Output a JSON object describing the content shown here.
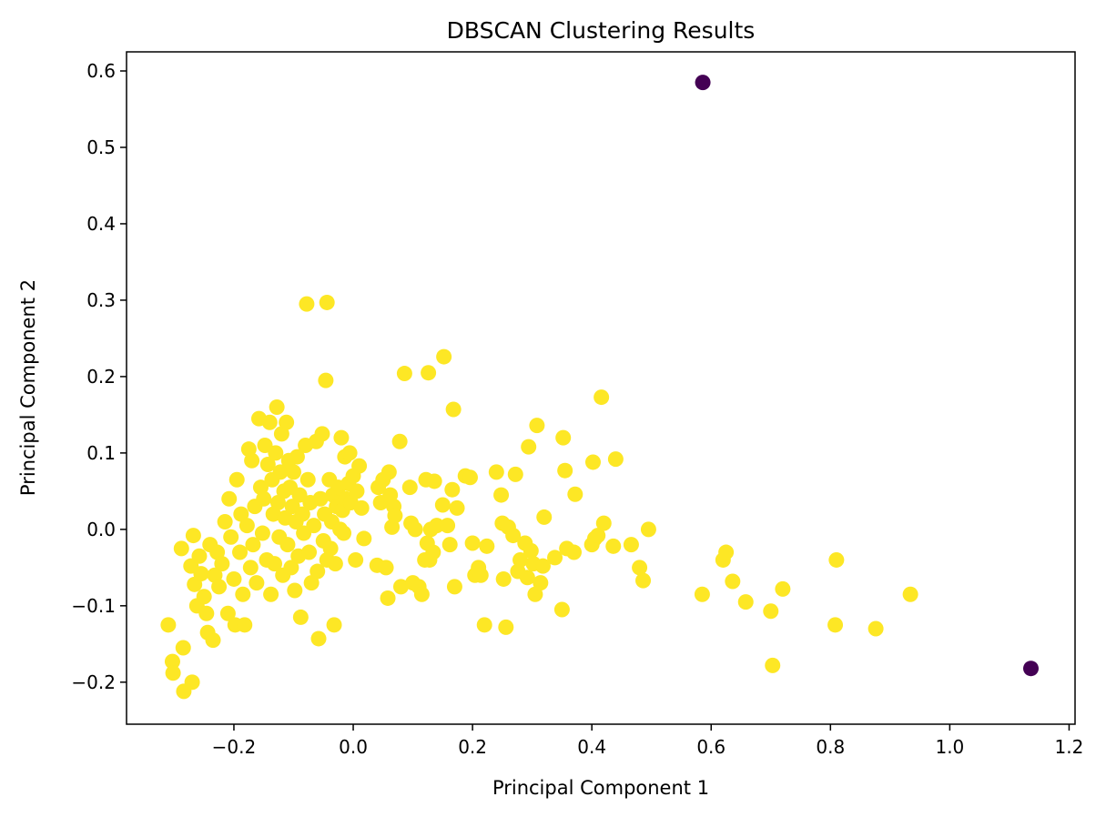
{
  "chart_data": {
    "type": "scatter",
    "title": "DBSCAN Clustering Results",
    "xlabel": "Principal Component 1",
    "ylabel": "Principal Component 2",
    "xlim": [
      -0.38,
      1.21
    ],
    "ylim": [
      -0.255,
      0.625
    ],
    "grid": false,
    "x_ticks": [
      -0.2,
      0.0,
      0.2,
      0.4,
      0.6,
      0.8,
      1.0,
      1.2
    ],
    "x_tick_labels": [
      "−0.2",
      "0.0",
      "0.2",
      "0.4",
      "0.6",
      "0.8",
      "1.0",
      "1.2"
    ],
    "y_ticks": [
      -0.2,
      -0.1,
      0.0,
      0.1,
      0.2,
      0.3,
      0.4,
      0.5,
      0.6
    ],
    "y_tick_labels": [
      "−0.2",
      "−0.1",
      "0.0",
      "0.1",
      "0.2",
      "0.3",
      "0.4",
      "0.5",
      "0.6"
    ],
    "colors": {
      "cluster": "#fde725",
      "noise": "#440154"
    },
    "series": [
      {
        "cluster": 0,
        "points": [
          [
            -0.31,
            -0.125
          ],
          [
            -0.303,
            -0.173
          ],
          [
            -0.302,
            -0.188
          ],
          [
            -0.285,
            -0.155
          ],
          [
            -0.284,
            -0.212
          ],
          [
            -0.288,
            -0.025
          ],
          [
            -0.27,
            -0.2
          ],
          [
            -0.268,
            -0.008
          ],
          [
            -0.272,
            -0.048
          ],
          [
            -0.266,
            -0.072
          ],
          [
            -0.262,
            -0.1
          ],
          [
            -0.258,
            -0.035
          ],
          [
            -0.255,
            -0.058
          ],
          [
            -0.25,
            -0.088
          ],
          [
            -0.246,
            -0.11
          ],
          [
            -0.244,
            -0.135
          ],
          [
            -0.24,
            -0.02
          ],
          [
            -0.235,
            -0.145
          ],
          [
            -0.232,
            -0.06
          ],
          [
            -0.228,
            -0.03
          ],
          [
            -0.225,
            -0.075
          ],
          [
            -0.22,
            -0.045
          ],
          [
            -0.215,
            0.01
          ],
          [
            -0.21,
            -0.11
          ],
          [
            -0.208,
            0.04
          ],
          [
            -0.205,
            -0.01
          ],
          [
            -0.2,
            -0.065
          ],
          [
            -0.198,
            -0.125
          ],
          [
            -0.195,
            0.065
          ],
          [
            -0.19,
            -0.03
          ],
          [
            -0.188,
            0.02
          ],
          [
            -0.185,
            -0.085
          ],
          [
            -0.182,
            -0.125
          ],
          [
            -0.178,
            0.005
          ],
          [
            -0.175,
            0.105
          ],
          [
            -0.172,
            -0.05
          ],
          [
            -0.17,
            0.09
          ],
          [
            -0.168,
            -0.02
          ],
          [
            -0.165,
            0.03
          ],
          [
            -0.162,
            -0.07
          ],
          [
            -0.158,
            0.145
          ],
          [
            -0.155,
            0.055
          ],
          [
            -0.152,
            -0.005
          ],
          [
            -0.15,
            0.04
          ],
          [
            -0.148,
            0.11
          ],
          [
            -0.145,
            -0.04
          ],
          [
            -0.143,
            0.085
          ],
          [
            -0.14,
            0.14
          ],
          [
            -0.138,
            -0.085
          ],
          [
            -0.136,
            0.065
          ],
          [
            -0.134,
            0.02
          ],
          [
            -0.132,
            -0.045
          ],
          [
            -0.13,
            0.1
          ],
          [
            -0.128,
            0.16
          ],
          [
            -0.126,
            0.035
          ],
          [
            -0.124,
            -0.01
          ],
          [
            -0.122,
            0.075
          ],
          [
            -0.12,
            0.125
          ],
          [
            -0.118,
            -0.06
          ],
          [
            -0.116,
            0.05
          ],
          [
            -0.114,
            0.015
          ],
          [
            -0.112,
            0.14
          ],
          [
            -0.11,
            -0.02
          ],
          [
            -0.108,
            0.09
          ],
          [
            -0.106,
            0.055
          ],
          [
            -0.104,
            -0.05
          ],
          [
            -0.102,
            0.03
          ],
          [
            -0.1,
            0.075
          ],
          [
            -0.098,
            -0.08
          ],
          [
            -0.096,
            0.01
          ],
          [
            -0.094,
            0.095
          ],
          [
            -0.092,
            -0.035
          ],
          [
            -0.09,
            0.045
          ],
          [
            -0.088,
            -0.115
          ],
          [
            -0.085,
            0.02
          ],
          [
            -0.083,
            -0.005
          ],
          [
            -0.08,
            0.11
          ],
          [
            -0.078,
            0.295
          ],
          [
            -0.076,
            0.065
          ],
          [
            -0.074,
            -0.03
          ],
          [
            -0.072,
            0.035
          ],
          [
            -0.07,
            -0.07
          ],
          [
            -0.066,
            0.005
          ],
          [
            -0.062,
            0.115
          ],
          [
            -0.06,
            -0.055
          ],
          [
            -0.058,
            -0.143
          ],
          [
            -0.055,
            0.04
          ],
          [
            -0.052,
            0.125
          ],
          [
            -0.05,
            -0.015
          ],
          [
            -0.048,
            0.02
          ],
          [
            -0.046,
            0.195
          ],
          [
            -0.044,
            -0.04
          ],
          [
            -0.044,
            0.297
          ],
          [
            -0.04,
            0.065
          ],
          [
            -0.038,
            -0.025
          ],
          [
            -0.036,
            0.01
          ],
          [
            -0.034,
            0.045
          ],
          [
            -0.032,
            -0.125
          ],
          [
            -0.03,
            -0.045
          ],
          [
            -0.028,
            0.03
          ],
          [
            -0.025,
            0.055
          ],
          [
            -0.022,
            0.0
          ],
          [
            -0.02,
            0.12
          ],
          [
            -0.018,
            0.025
          ],
          [
            -0.016,
            -0.005
          ],
          [
            -0.014,
            0.095
          ],
          [
            -0.012,
            0.04
          ],
          [
            -0.008,
            0.06
          ],
          [
            -0.006,
            0.1
          ],
          [
            -0.004,
            0.035
          ],
          [
            0.0,
            0.07
          ],
          [
            0.004,
            -0.04
          ],
          [
            0.006,
            0.05
          ],
          [
            0.01,
            0.083
          ],
          [
            0.014,
            0.028
          ],
          [
            0.018,
            -0.012
          ],
          [
            0.04,
            -0.047
          ],
          [
            0.042,
            0.055
          ],
          [
            0.046,
            0.035
          ],
          [
            0.05,
            0.065
          ],
          [
            0.055,
            -0.05
          ],
          [
            0.058,
            -0.09
          ],
          [
            0.06,
            0.075
          ],
          [
            0.062,
            0.045
          ],
          [
            0.065,
            0.003
          ],
          [
            0.068,
            0.03
          ],
          [
            0.07,
            0.018
          ],
          [
            0.078,
            0.115
          ],
          [
            0.08,
            -0.075
          ],
          [
            0.086,
            0.204
          ],
          [
            0.095,
            0.055
          ],
          [
            0.097,
            0.008
          ],
          [
            0.1,
            -0.07
          ],
          [
            0.104,
            0.0
          ],
          [
            0.11,
            -0.075
          ],
          [
            0.115,
            -0.085
          ],
          [
            0.12,
            -0.04
          ],
          [
            0.122,
            0.065
          ],
          [
            0.124,
            -0.018
          ],
          [
            0.126,
            0.205
          ],
          [
            0.128,
            -0.04
          ],
          [
            0.13,
            0.0
          ],
          [
            0.134,
            -0.03
          ],
          [
            0.136,
            0.063
          ],
          [
            0.14,
            0.005
          ],
          [
            0.15,
            0.032
          ],
          [
            0.152,
            0.226
          ],
          [
            0.158,
            0.005
          ],
          [
            0.162,
            -0.02
          ],
          [
            0.166,
            0.052
          ],
          [
            0.168,
            0.157
          ],
          [
            0.17,
            -0.075
          ],
          [
            0.174,
            0.028
          ],
          [
            0.188,
            0.07
          ],
          [
            0.196,
            0.068
          ],
          [
            0.2,
            -0.018
          ],
          [
            0.204,
            -0.06
          ],
          [
            0.21,
            -0.05
          ],
          [
            0.214,
            -0.06
          ],
          [
            0.22,
            -0.125
          ],
          [
            0.224,
            -0.022
          ],
          [
            0.24,
            0.075
          ],
          [
            0.248,
            0.045
          ],
          [
            0.25,
            0.008
          ],
          [
            0.252,
            -0.065
          ],
          [
            0.256,
            -0.128
          ],
          [
            0.26,
            0.003
          ],
          [
            0.268,
            -0.008
          ],
          [
            0.272,
            0.072
          ],
          [
            0.276,
            -0.055
          ],
          [
            0.28,
            -0.04
          ],
          [
            0.288,
            -0.018
          ],
          [
            0.292,
            -0.063
          ],
          [
            0.294,
            0.108
          ],
          [
            0.298,
            -0.028
          ],
          [
            0.302,
            -0.045
          ],
          [
            0.305,
            -0.085
          ],
          [
            0.308,
            0.136
          ],
          [
            0.314,
            -0.07
          ],
          [
            0.318,
            -0.048
          ],
          [
            0.32,
            0.016
          ],
          [
            0.338,
            -0.037
          ],
          [
            0.35,
            -0.105
          ],
          [
            0.352,
            0.12
          ],
          [
            0.355,
            0.077
          ],
          [
            0.358,
            -0.025
          ],
          [
            0.37,
            -0.03
          ],
          [
            0.372,
            0.046
          ],
          [
            0.4,
            -0.02
          ],
          [
            0.402,
            0.088
          ],
          [
            0.405,
            -0.012
          ],
          [
            0.41,
            -0.008
          ],
          [
            0.416,
            0.173
          ],
          [
            0.42,
            0.008
          ],
          [
            0.436,
            -0.022
          ],
          [
            0.44,
            0.092
          ],
          [
            0.466,
            -0.02
          ],
          [
            0.48,
            -0.05
          ],
          [
            0.486,
            -0.067
          ],
          [
            0.495,
            0.0
          ],
          [
            0.585,
            -0.085
          ],
          [
            0.62,
            -0.04
          ],
          [
            0.625,
            -0.03
          ],
          [
            0.636,
            -0.068
          ],
          [
            0.658,
            -0.095
          ],
          [
            0.7,
            -0.107
          ],
          [
            0.703,
            -0.178
          ],
          [
            0.72,
            -0.078
          ],
          [
            0.808,
            -0.125
          ],
          [
            0.81,
            -0.04
          ],
          [
            0.876,
            -0.13
          ],
          [
            0.934,
            -0.085
          ]
        ]
      },
      {
        "cluster": -1,
        "points": [
          [
            0.586,
            0.585
          ],
          [
            1.136,
            -0.182
          ]
        ]
      }
    ]
  }
}
